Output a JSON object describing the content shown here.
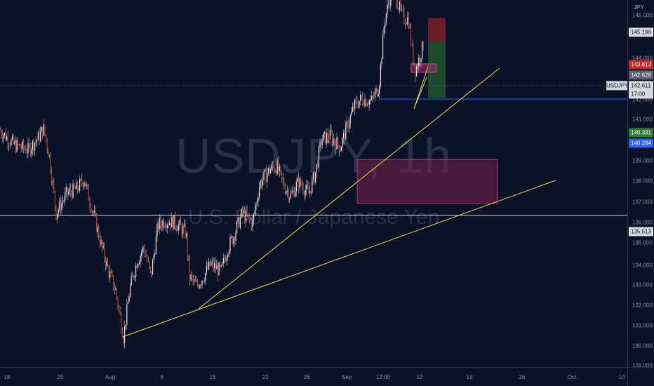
{
  "watermark": {
    "symbol": "USDJPY, 1h",
    "description": "U.S. Dollar / Japanese Yen"
  },
  "price_axis": {
    "unit": "JPY",
    "ticks": [
      "145.000",
      "144.000",
      "142.000",
      "141.000",
      "139.000",
      "138.000",
      "137.000",
      "136.000",
      "135.000",
      "134.000",
      "133.000",
      "132.000",
      "131.000",
      "130.000",
      "129.000"
    ],
    "tags": {
      "level_high": "145.196",
      "stop": "143.613",
      "entry": "142.628",
      "current_price": "142.611",
      "countdown": "17:00",
      "target": "140.331",
      "blue_line": "140.284",
      "level_low": "135.513"
    },
    "symbol_tag": "USDJPY"
  },
  "time_axis": {
    "labels": [
      "18",
      "25",
      "Aug",
      "8",
      "15",
      "22",
      "26",
      "Sep",
      "12:00",
      "12",
      "19",
      "26",
      "Oct",
      "10"
    ]
  },
  "colors": {
    "background": "#0b1226",
    "trendline": "#e8e24a",
    "stop_tag": "#c62828",
    "target_tag": "#2e7d32",
    "blue_line": "#2962ff",
    "zone": "#7a1f4b",
    "candle": "#e8e8ec"
  },
  "chart_data": {
    "type": "candlestick",
    "symbol": "USDJPY",
    "interval": "1h",
    "ylim": [
      129,
      146
    ],
    "horizontal_levels": [
      145.196,
      135.513,
      140.284
    ],
    "zone": {
      "from": 136.0,
      "to": 137.8
    },
    "position": {
      "entry": 142.628,
      "stop": 143.613,
      "target": 140.331
    },
    "price_path": [
      [
        0,
        139.0
      ],
      [
        20,
        138.4
      ],
      [
        40,
        138.2
      ],
      [
        55,
        138.7
      ],
      [
        62,
        139.1
      ],
      [
        70,
        138.0
      ],
      [
        80,
        135.6
      ],
      [
        95,
        136.4
      ],
      [
        110,
        136.6
      ],
      [
        120,
        137.0
      ],
      [
        127,
        136.2
      ],
      [
        135,
        135.4
      ],
      [
        145,
        134.2
      ],
      [
        155,
        133.2
      ],
      [
        165,
        132.4
      ],
      [
        176,
        130.5
      ],
      [
        185,
        132.5
      ],
      [
        195,
        133.6
      ],
      [
        205,
        134.2
      ],
      [
        215,
        133.0
      ],
      [
        225,
        135.1
      ],
      [
        235,
        135.3
      ],
      [
        250,
        135.2
      ],
      [
        265,
        134.8
      ],
      [
        270,
        133.0
      ],
      [
        280,
        132.6
      ],
      [
        290,
        133.0
      ],
      [
        300,
        133.5
      ],
      [
        315,
        133.2
      ],
      [
        325,
        134.2
      ],
      [
        335,
        134.8
      ],
      [
        345,
        135.6
      ],
      [
        360,
        135.2
      ],
      [
        370,
        136.8
      ],
      [
        385,
        137.4
      ],
      [
        395,
        137.5
      ],
      [
        405,
        136.7
      ],
      [
        415,
        136.3
      ],
      [
        425,
        136.9
      ],
      [
        440,
        136.4
      ],
      [
        450,
        137.3
      ],
      [
        458,
        138.6
      ],
      [
        470,
        138.8
      ],
      [
        485,
        138.3
      ],
      [
        495,
        139.2
      ],
      [
        505,
        140.0
      ],
      [
        515,
        140.3
      ],
      [
        530,
        140.2
      ],
      [
        540,
        140.8
      ],
      [
        548,
        143.5
      ],
      [
        556,
        144.5
      ],
      [
        562,
        144.8
      ],
      [
        568,
        144.1
      ],
      [
        575,
        143.6
      ],
      [
        582,
        143.6
      ],
      [
        587,
        142.3
      ],
      [
        592,
        141.5
      ],
      [
        598,
        142.0
      ],
      [
        604,
        142.6
      ]
    ]
  }
}
